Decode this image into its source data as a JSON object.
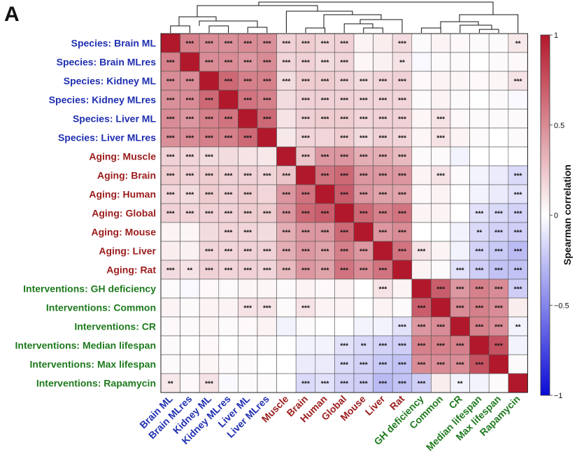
{
  "panel_label": "A",
  "colors": {
    "Species": "#1f2fb0",
    "Aging": "#9b1b1b",
    "Interventions": "#1e7a1e"
  },
  "chart_data": {
    "type": "heatmap",
    "title": "",
    "row_labels": [
      "Species: Brain ML",
      "Species: Brain MLres",
      "Species: Kidney ML",
      "Species: Kidney MLres",
      "Species: Liver ML",
      "Species: Liver MLres",
      "Aging: Muscle",
      "Aging: Brain",
      "Aging: Human",
      "Aging: Global",
      "Aging: Mouse",
      "Aging: Liver",
      "Aging: Rat",
      "Interventions: GH deficiency",
      "Interventions: Common",
      "Interventions: CR",
      "Interventions: Median lifespan",
      "Interventions: Max lifespan",
      "Interventions: Rapamycin"
    ],
    "col_labels": [
      "Brain ML",
      "Brain MLres",
      "Kidney ML",
      "Kidney MLres",
      "Liver ML",
      "Liver MLres",
      "Muscle",
      "Brain",
      "Human",
      "Global",
      "Mouse",
      "Liver",
      "Rat",
      "GH deficiency",
      "Common",
      "CR",
      "Median lifespan",
      "Max lifespan",
      "Rapamycin"
    ],
    "groups": [
      "Species",
      "Species",
      "Species",
      "Species",
      "Species",
      "Species",
      "Aging",
      "Aging",
      "Aging",
      "Aging",
      "Aging",
      "Aging",
      "Aging",
      "Interventions",
      "Interventions",
      "Interventions",
      "Interventions",
      "Interventions",
      "Interventions"
    ],
    "values": [
      [
        1.0,
        0.55,
        0.5,
        0.48,
        0.5,
        0.48,
        0.2,
        0.22,
        0.18,
        0.2,
        0.05,
        0.08,
        0.15,
        0.02,
        0.05,
        0.03,
        0.02,
        0.02,
        0.1
      ],
      [
        0.55,
        1.0,
        0.5,
        0.5,
        0.45,
        0.5,
        0.18,
        0.2,
        0.15,
        0.18,
        0.04,
        0.06,
        0.12,
        -0.03,
        0.02,
        0.02,
        0.0,
        0.02,
        0.03
      ],
      [
        0.5,
        0.5,
        1.0,
        0.65,
        0.55,
        0.55,
        0.15,
        0.22,
        0.22,
        0.2,
        0.15,
        0.18,
        0.2,
        0.03,
        0.05,
        0.04,
        0.03,
        0.04,
        0.12
      ],
      [
        0.48,
        0.5,
        0.65,
        1.0,
        0.6,
        0.55,
        0.15,
        0.2,
        0.2,
        0.2,
        0.18,
        0.18,
        0.18,
        0.02,
        0.05,
        0.02,
        0.0,
        0.02,
        -0.02
      ],
      [
        0.5,
        0.45,
        0.55,
        0.6,
        1.0,
        0.65,
        0.12,
        0.2,
        0.22,
        0.22,
        0.18,
        0.2,
        0.2,
        0.04,
        0.12,
        0.03,
        0.02,
        0.02,
        0.02
      ],
      [
        0.48,
        0.5,
        0.55,
        0.55,
        0.65,
        1.0,
        0.1,
        0.18,
        0.18,
        0.22,
        0.15,
        0.2,
        0.18,
        0.04,
        0.12,
        0.05,
        0.02,
        0.0,
        0.02
      ],
      [
        0.2,
        0.18,
        0.15,
        0.15,
        0.12,
        0.1,
        1.0,
        0.25,
        0.45,
        0.45,
        0.35,
        0.35,
        0.3,
        0.02,
        0.02,
        -0.05,
        0.0,
        0.0,
        0.0
      ],
      [
        0.22,
        0.2,
        0.22,
        0.2,
        0.2,
        0.18,
        0.25,
        1.0,
        0.6,
        0.65,
        0.45,
        0.45,
        0.45,
        0.05,
        0.12,
        0.02,
        -0.05,
        -0.08,
        -0.15
      ],
      [
        0.18,
        0.15,
        0.22,
        0.2,
        0.22,
        0.18,
        0.45,
        0.6,
        1.0,
        0.7,
        0.45,
        0.4,
        0.4,
        0.03,
        0.05,
        0.0,
        -0.05,
        -0.08,
        -0.12
      ],
      [
        0.2,
        0.18,
        0.2,
        0.2,
        0.22,
        0.22,
        0.45,
        0.65,
        0.7,
        1.0,
        0.65,
        0.55,
        0.6,
        0.05,
        0.05,
        0.0,
        -0.12,
        -0.15,
        -0.18
      ],
      [
        0.05,
        0.04,
        0.15,
        0.18,
        0.18,
        0.15,
        0.35,
        0.45,
        0.45,
        0.65,
        1.0,
        0.45,
        0.5,
        0.0,
        0.0,
        -0.05,
        -0.15,
        -0.18,
        -0.2
      ],
      [
        0.08,
        0.06,
        0.18,
        0.18,
        0.2,
        0.2,
        0.35,
        0.45,
        0.4,
        0.55,
        0.45,
        1.0,
        0.6,
        0.12,
        0.05,
        -0.05,
        -0.18,
        -0.22,
        -0.28
      ],
      [
        0.15,
        0.12,
        0.2,
        0.18,
        0.2,
        0.18,
        0.3,
        0.45,
        0.4,
        0.6,
        0.5,
        0.6,
        1.0,
        0.05,
        0.02,
        -0.12,
        -0.2,
        -0.25,
        -0.25
      ],
      [
        0.02,
        -0.03,
        0.03,
        0.02,
        0.04,
        0.04,
        0.02,
        0.05,
        0.03,
        0.05,
        0.0,
        0.12,
        0.05,
        1.0,
        0.7,
        0.45,
        0.55,
        0.5,
        -0.2
      ],
      [
        0.05,
        0.02,
        0.05,
        0.05,
        0.12,
        0.12,
        0.02,
        0.12,
        0.05,
        0.05,
        0.0,
        0.05,
        0.02,
        0.7,
        1.0,
        0.5,
        0.55,
        0.5,
        0.08
      ],
      [
        0.03,
        0.02,
        0.04,
        0.02,
        0.03,
        0.05,
        -0.05,
        0.02,
        0.0,
        0.0,
        -0.05,
        -0.05,
        -0.12,
        0.45,
        0.5,
        1.0,
        0.55,
        0.5,
        -0.05
      ],
      [
        0.02,
        0.0,
        0.03,
        0.0,
        0.02,
        0.02,
        0.0,
        -0.05,
        -0.05,
        -0.12,
        -0.15,
        -0.18,
        -0.2,
        0.55,
        0.55,
        0.55,
        1.0,
        0.75,
        -0.05
      ],
      [
        0.02,
        0.02,
        0.04,
        0.02,
        0.02,
        0.0,
        0.0,
        -0.08,
        -0.08,
        -0.15,
        -0.18,
        -0.22,
        -0.25,
        0.5,
        0.5,
        0.5,
        0.75,
        1.0,
        0.02
      ],
      [
        0.1,
        0.03,
        0.12,
        -0.02,
        0.02,
        0.02,
        0.0,
        -0.15,
        -0.12,
        -0.18,
        -0.2,
        -0.28,
        -0.25,
        -0.2,
        0.08,
        -0.05,
        -0.05,
        0.02,
        1.0
      ]
    ],
    "significance": [
      [
        "",
        "***",
        "***",
        "***",
        "***",
        "***",
        "***",
        "***",
        "***",
        "***",
        "",
        "",
        "***",
        "",
        "",
        "",
        "",
        "",
        "**"
      ],
      [
        "***",
        "",
        "***",
        "***",
        "***",
        "***",
        "***",
        "***",
        "***",
        "***",
        "",
        "",
        "**",
        "",
        "",
        "",
        "",
        "",
        ""
      ],
      [
        "***",
        "***",
        "",
        "***",
        "***",
        "***",
        "***",
        "***",
        "***",
        "***",
        "***",
        "***",
        "***",
        "",
        "",
        "",
        "",
        "",
        "***"
      ],
      [
        "***",
        "***",
        "***",
        "",
        "***",
        "***",
        "",
        "***",
        "***",
        "***",
        "***",
        "***",
        "***",
        "",
        "",
        "",
        "",
        "",
        ""
      ],
      [
        "***",
        "***",
        "***",
        "***",
        "",
        "***",
        "",
        "***",
        "***",
        "***",
        "***",
        "***",
        "***",
        "",
        "***",
        "",
        "",
        "",
        ""
      ],
      [
        "***",
        "***",
        "***",
        "***",
        "***",
        "",
        "",
        "***",
        "",
        "***",
        "***",
        "***",
        "***",
        "",
        "***",
        "",
        "",
        "",
        ""
      ],
      [
        "***",
        "***",
        "***",
        "",
        "",
        "",
        "",
        "***",
        "***",
        "***",
        "***",
        "***",
        "***",
        "",
        "",
        "",
        "",
        "",
        ""
      ],
      [
        "***",
        "***",
        "***",
        "***",
        "***",
        "***",
        "***",
        "",
        "***",
        "***",
        "***",
        "***",
        "***",
        "",
        "***",
        "",
        "",
        "",
        "***"
      ],
      [
        "***",
        "***",
        "***",
        "***",
        "***",
        "",
        "***",
        "***",
        "",
        "***",
        "***",
        "***",
        "***",
        "",
        "",
        "",
        "",
        "",
        "***"
      ],
      [
        "***",
        "***",
        "***",
        "***",
        "***",
        "***",
        "***",
        "***",
        "***",
        "",
        "***",
        "***",
        "***",
        "",
        "",
        "",
        "***",
        "***",
        "***"
      ],
      [
        "",
        "",
        "",
        "***",
        "***",
        "",
        "***",
        "***",
        "***",
        "***",
        "",
        "***",
        "***",
        "",
        "",
        "",
        "**",
        "***",
        "***"
      ],
      [
        "",
        "",
        "***",
        "***",
        "***",
        "***",
        "***",
        "***",
        "***",
        "***",
        "***",
        "",
        "***",
        "***",
        "",
        "",
        "***",
        "***",
        "***"
      ],
      [
        "***",
        "**",
        "***",
        "***",
        "***",
        "***",
        "***",
        "***",
        "***",
        "***",
        "***",
        "***",
        "",
        "",
        "",
        "***",
        "***",
        "***",
        "***"
      ],
      [
        "",
        "",
        "",
        "",
        "",
        "",
        "",
        "",
        "",
        "",
        "",
        "***",
        "",
        "",
        "***",
        "***",
        "***",
        "***",
        "***"
      ],
      [
        "",
        "",
        "",
        "",
        "***",
        "***",
        "",
        "***",
        "",
        "",
        "",
        "",
        "",
        "***",
        "",
        "***",
        "***",
        "***",
        ""
      ],
      [
        "",
        "",
        "",
        "",
        "",
        "",
        "",
        "",
        "",
        "",
        "",
        "",
        "***",
        "***",
        "***",
        "",
        "***",
        "***",
        "**"
      ],
      [
        "",
        "",
        "",
        "",
        "",
        "",
        "",
        "",
        "",
        "***",
        "**",
        "***",
        "***",
        "***",
        "***",
        "***",
        "",
        "***",
        ""
      ],
      [
        "",
        "",
        "",
        "",
        "",
        "",
        "",
        "",
        "",
        "***",
        "***",
        "***",
        "***",
        "***",
        "***",
        "***",
        "***",
        "",
        ""
      ],
      [
        "**",
        "",
        "***",
        "",
        "",
        "",
        "",
        "***",
        "***",
        "***",
        "***",
        "***",
        "***",
        "***",
        "",
        "**",
        "",
        "",
        ""
      ]
    ],
    "vmin": -1,
    "vmax": 1,
    "colorbar": {
      "label": "Spearman correlation",
      "ticks": [
        1,
        0.5,
        0,
        -0.5,
        -1
      ],
      "tick_labels": [
        "1",
        "0.5",
        "0",
        "−0.5",
        "−1"
      ]
    },
    "dendrogram": "top"
  }
}
